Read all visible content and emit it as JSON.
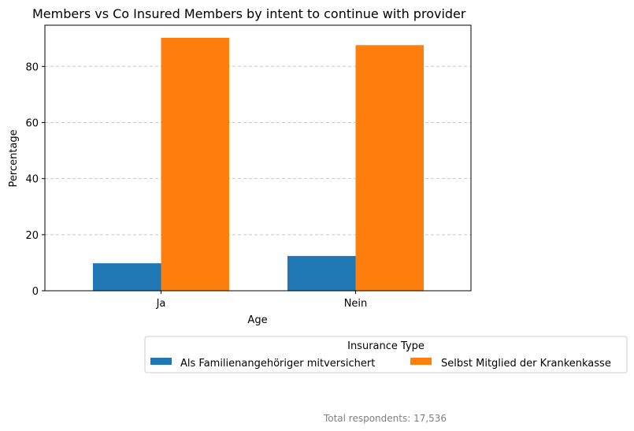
{
  "chart_data": {
    "type": "bar",
    "title": "Members vs Co Insured Members by intent to continue with provider",
    "xlabel": "Age",
    "ylabel": "Percentage",
    "categories": [
      "Ja",
      "Nein"
    ],
    "series": [
      {
        "name": "Als Familienangehöriger mitversichert",
        "values": [
          9.8,
          12.4
        ],
        "color": "#1f77b4"
      },
      {
        "name": "Selbst Mitglied der Krankenkasse",
        "values": [
          90.2,
          87.6
        ],
        "color": "#ff7f0e"
      }
    ],
    "ylim": [
      0,
      94.7
    ],
    "yticks": [
      0,
      20,
      40,
      60,
      80
    ],
    "grid": "y-dashed",
    "legend": {
      "title": "Insurance Type",
      "placement": "bottom-right, outside"
    }
  },
  "footnote": "Total respondents: 17,536"
}
